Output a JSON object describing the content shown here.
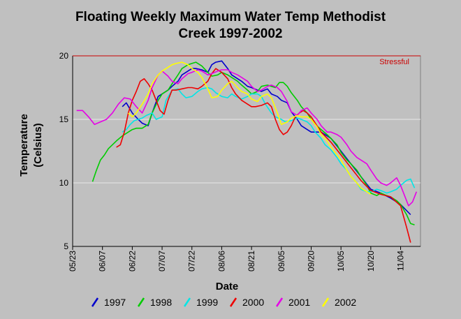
{
  "chart_data": {
    "type": "line",
    "title_line1": "Floating Weekly Maximum Water Temp Methodist",
    "title_line2": "Creek 1997-2002",
    "ylabel_line1": "Temperature",
    "ylabel_line2": "(Celsius)",
    "xlabel": "Date",
    "ylim": [
      5,
      20
    ],
    "xlim": [
      0,
      175
    ],
    "yticks": [
      5,
      10,
      15,
      20
    ],
    "x_ticks": [
      {
        "label": "05/23",
        "x": 0
      },
      {
        "label": "06/07",
        "x": 15
      },
      {
        "label": "06/22",
        "x": 30
      },
      {
        "label": "07/07",
        "x": 45
      },
      {
        "label": "07/22",
        "x": 60
      },
      {
        "label": "08/06",
        "x": 75
      },
      {
        "label": "08/21",
        "x": 90
      },
      {
        "label": "09/05",
        "x": 105
      },
      {
        "label": "09/20",
        "x": 120
      },
      {
        "label": "10/05",
        "x": 135
      },
      {
        "label": "10/20",
        "x": 150
      },
      {
        "label": "11/04",
        "x": 165
      }
    ],
    "threshold": {
      "label": "Stressful",
      "value": 20,
      "color": "#cc0000"
    },
    "grid": "horizontal",
    "legend_position": "bottom",
    "series": [
      {
        "name": "1997",
        "color": "#0000cc",
        "x": [
          25,
          27,
          30,
          33,
          35,
          38,
          40,
          43,
          45,
          48,
          50,
          53,
          55,
          58,
          60,
          62,
          65,
          68,
          70,
          72,
          75,
          78,
          80,
          83,
          85,
          88,
          90,
          93,
          95,
          98,
          100,
          103,
          105,
          108,
          110,
          113,
          115,
          118,
          120,
          125,
          130,
          135,
          140,
          145,
          150,
          155,
          160,
          165,
          170
        ],
        "y": [
          16.0,
          16.3,
          15.5,
          15.0,
          14.7,
          14.5,
          15.5,
          16.8,
          17.0,
          17.3,
          17.6,
          18.0,
          18.5,
          18.8,
          19.0,
          19.0,
          18.9,
          18.7,
          19.3,
          19.5,
          19.6,
          19.0,
          18.5,
          18.2,
          18.0,
          17.6,
          17.5,
          17.3,
          17.2,
          17.4,
          17.0,
          16.8,
          16.5,
          16.3,
          15.6,
          15.0,
          14.5,
          14.2,
          14.0,
          14.0,
          13.5,
          12.5,
          11.5,
          10.5,
          9.5,
          9.2,
          8.8,
          8.3,
          7.5
        ]
      },
      {
        "name": "1998",
        "color": "#00cc00",
        "x": [
          10,
          12,
          14,
          16,
          18,
          20,
          22,
          25,
          28,
          30,
          32,
          35,
          38,
          40,
          43,
          45,
          48,
          50,
          53,
          55,
          58,
          60,
          62,
          65,
          68,
          70,
          73,
          75,
          78,
          80,
          83,
          85,
          88,
          90,
          93,
          95,
          98,
          100,
          102,
          104,
          106,
          108,
          110,
          113,
          115,
          118,
          120,
          122,
          125,
          128,
          130,
          133,
          135,
          138,
          140,
          143,
          145,
          148,
          150,
          153,
          155,
          158,
          160,
          163,
          165,
          168,
          170,
          172
        ],
        "y": [
          10.1,
          11.0,
          11.8,
          12.2,
          12.7,
          13.0,
          13.3,
          13.7,
          14.0,
          14.2,
          14.3,
          14.3,
          14.6,
          15.5,
          16.5,
          17.0,
          17.3,
          17.8,
          18.5,
          19.0,
          19.3,
          19.4,
          19.5,
          19.2,
          18.7,
          18.4,
          18.5,
          18.7,
          18.5,
          18.3,
          18.0,
          17.7,
          17.3,
          17.0,
          17.2,
          17.6,
          17.7,
          17.6,
          17.5,
          17.9,
          17.9,
          17.6,
          17.1,
          16.5,
          16.0,
          15.5,
          15.0,
          14.6,
          14.2,
          13.8,
          13.5,
          13.0,
          12.4,
          11.8,
          11.5,
          11.0,
          10.5,
          9.8,
          9.2,
          9.0,
          9.2,
          9.0,
          8.9,
          8.6,
          8.3,
          7.5,
          6.8,
          6.7
        ]
      },
      {
        "name": "1999",
        "color": "#00e6e6",
        "x": [
          25,
          27,
          29,
          31,
          33,
          35,
          37,
          40,
          42,
          45,
          47,
          50,
          53,
          55,
          57,
          60,
          63,
          65,
          68,
          70,
          72,
          75,
          78,
          80,
          82,
          85,
          88,
          90,
          93,
          95,
          97,
          100,
          102,
          105,
          107,
          110,
          113,
          115,
          118,
          120,
          122,
          125,
          127,
          130,
          133,
          135,
          138,
          140,
          143,
          145,
          148,
          150,
          153,
          155,
          158,
          160,
          163,
          165,
          168,
          170,
          172
        ],
        "y": [
          14.0,
          14.2,
          14.6,
          14.9,
          15.0,
          15.1,
          15.3,
          15.5,
          15.0,
          15.2,
          16.5,
          17.3,
          17.4,
          17.0,
          16.7,
          16.8,
          17.2,
          17.4,
          17.5,
          17.4,
          17.1,
          16.8,
          16.7,
          17.0,
          16.8,
          16.6,
          16.8,
          17.0,
          17.0,
          16.8,
          16.2,
          15.5,
          15.2,
          15.0,
          14.8,
          14.9,
          15.1,
          15.0,
          14.8,
          14.5,
          14.0,
          13.5,
          13.0,
          12.6,
          12.0,
          11.5,
          11.0,
          10.5,
          10.0,
          9.5,
          9.3,
          9.3,
          9.5,
          9.4,
          9.2,
          9.3,
          9.5,
          9.8,
          10.2,
          10.3,
          9.6
        ]
      },
      {
        "name": "2000",
        "color": "#ee0000",
        "x": [
          22,
          24,
          26,
          28,
          30,
          32,
          34,
          36,
          38,
          40,
          42,
          44,
          46,
          48,
          50,
          52,
          55,
          58,
          60,
          63,
          65,
          68,
          70,
          72,
          75,
          78,
          80,
          82,
          85,
          88,
          90,
          92,
          95,
          98,
          100,
          102,
          104,
          106,
          108,
          110,
          112,
          114,
          116,
          118,
          120,
          125,
          130,
          135,
          140,
          145,
          150,
          155,
          160,
          165,
          168,
          170
        ],
        "y": [
          12.8,
          13.0,
          14.0,
          15.5,
          16.5,
          17.2,
          18.0,
          18.2,
          17.8,
          17.3,
          16.5,
          15.7,
          15.4,
          16.5,
          17.3,
          17.3,
          17.4,
          17.5,
          17.5,
          17.4,
          17.6,
          18.0,
          18.6,
          19.0,
          18.7,
          18.2,
          17.5,
          17.0,
          16.5,
          16.2,
          16.0,
          16.0,
          16.1,
          16.3,
          16.0,
          15.0,
          14.2,
          13.8,
          14.0,
          14.5,
          15.2,
          15.5,
          15.7,
          15.5,
          15.2,
          14.0,
          13.2,
          12.2,
          11.2,
          10.2,
          9.4,
          9.1,
          8.9,
          8.2,
          6.5,
          5.3
        ]
      },
      {
        "name": "2001",
        "color": "#e600e6",
        "x": [
          2,
          5,
          8,
          11,
          14,
          17,
          20,
          23,
          26,
          29,
          32,
          35,
          38,
          40,
          43,
          45,
          48,
          50,
          53,
          55,
          58,
          60,
          63,
          65,
          68,
          70,
          73,
          75,
          78,
          80,
          83,
          85,
          88,
          90,
          93,
          95,
          98,
          100,
          103,
          105,
          108,
          110,
          113,
          115,
          118,
          120,
          123,
          125,
          128,
          130,
          133,
          135,
          138,
          140,
          143,
          145,
          148,
          150,
          153,
          155,
          158,
          160,
          163,
          165,
          167,
          169,
          171,
          173
        ],
        "y": [
          15.7,
          15.7,
          15.2,
          14.6,
          14.8,
          15.0,
          15.5,
          16.2,
          16.7,
          16.6,
          16.0,
          15.5,
          16.5,
          17.5,
          18.5,
          18.8,
          18.4,
          18.0,
          17.8,
          18.2,
          18.6,
          18.7,
          18.9,
          18.8,
          18.5,
          18.6,
          18.8,
          18.9,
          18.9,
          18.7,
          18.5,
          18.3,
          18.0,
          17.6,
          17.2,
          17.3,
          17.6,
          17.7,
          17.5,
          17.2,
          16.4,
          15.6,
          15.3,
          15.7,
          15.9,
          15.5,
          15.0,
          14.5,
          14.0,
          14.0,
          13.8,
          13.6,
          13.0,
          12.5,
          12.0,
          11.8,
          11.5,
          11.0,
          10.3,
          10.0,
          9.8,
          10.0,
          10.4,
          9.8,
          9.0,
          8.2,
          8.5,
          9.3
        ]
      },
      {
        "name": "2002",
        "color": "#ffff00",
        "x": [
          28,
          30,
          32,
          35,
          38,
          40,
          43,
          45,
          48,
          50,
          52,
          55,
          58,
          60,
          63,
          65,
          68,
          70,
          73,
          75,
          78,
          80,
          83,
          85,
          88,
          90,
          93,
          95,
          98,
          100,
          103,
          105,
          108,
          110,
          113,
          115,
          118,
          120,
          123,
          125,
          128,
          130,
          133,
          135,
          138,
          140,
          143,
          145,
          148,
          150
        ],
        "y": [
          15.5,
          15.2,
          15.5,
          16.2,
          17.0,
          17.8,
          18.5,
          18.8,
          19.1,
          19.3,
          19.4,
          19.5,
          19.3,
          19.0,
          18.7,
          18.3,
          17.4,
          16.7,
          16.8,
          17.3,
          17.8,
          18.0,
          17.5,
          17.2,
          17.0,
          16.6,
          16.4,
          16.8,
          17.0,
          16.7,
          15.5,
          14.6,
          14.8,
          15.1,
          15.3,
          15.2,
          15.2,
          15.0,
          14.4,
          13.8,
          13.3,
          12.8,
          12.2,
          11.8,
          11.0,
          10.5,
          10.0,
          9.6,
          9.3,
          9.1
        ]
      }
    ]
  }
}
